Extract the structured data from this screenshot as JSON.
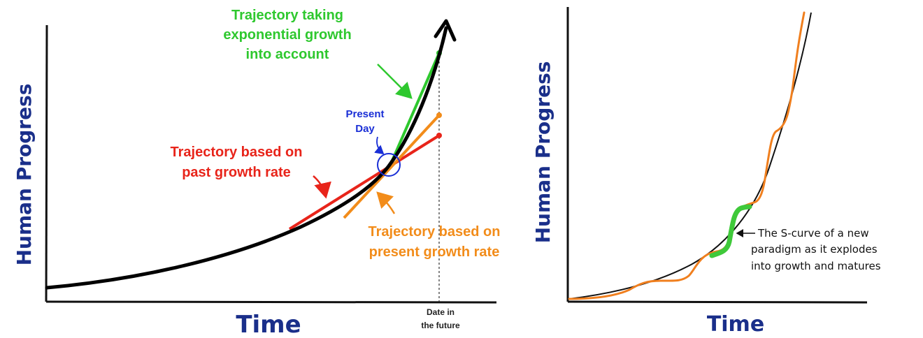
{
  "colors": {
    "axis_title": "#1a2f8a",
    "main_curve": "#000000",
    "green": "#2ec82e",
    "orange": "#f28c1a",
    "red": "#e8241a",
    "blue": "#1a2fd6",
    "scurve_orange": "#f07f1e"
  },
  "left_panel": {
    "y_axis_title": "Human Progress",
    "x_axis_title": "Time",
    "future_label_line1": "Date in",
    "future_label_line2": "the future",
    "green_label": [
      "Trajectory taking",
      "exponential growth",
      "into account"
    ],
    "present_label": [
      "Present",
      "Day"
    ],
    "red_label": [
      "Trajectory based on",
      "past growth rate"
    ],
    "orange_label": [
      "Trajectory based on",
      "present growth rate"
    ]
  },
  "right_panel": {
    "y_axis_title": "Human Progress",
    "x_axis_title": "Time",
    "annotation": [
      "The S-curve of a new",
      "paradigm as it explodes",
      "into growth and matures"
    ]
  }
}
